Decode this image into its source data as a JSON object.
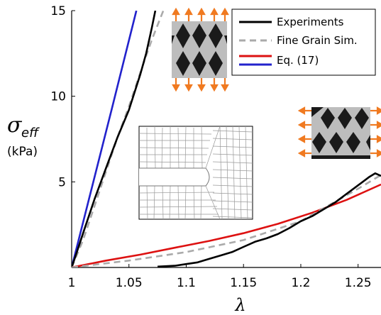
{
  "chart_data": {
    "type": "line",
    "xlabel": "λ",
    "ylabel": {
      "symbol": "σ",
      "subscript": "eff",
      "unit": "(kPa)"
    },
    "xlim": [
      1.0,
      1.27
    ],
    "ylim": [
      0,
      15
    ],
    "xticks": [
      {
        "value": 1.0,
        "label": "1"
      },
      {
        "value": 1.05,
        "label": "1.05"
      },
      {
        "value": 1.1,
        "label": "1.1"
      },
      {
        "value": 1.15,
        "label": "1.15"
      },
      {
        "value": 1.2,
        "label": "1.2"
      },
      {
        "value": 1.25,
        "label": "1.25"
      }
    ],
    "yticks": [
      {
        "value": 5,
        "label": "5"
      },
      {
        "value": 10,
        "label": "10"
      },
      {
        "value": 15,
        "label": "15"
      }
    ],
    "grid": false,
    "legend": {
      "placement": "top-right",
      "entries": [
        {
          "label": "Experiments",
          "color": "#000000",
          "dash": "solid"
        },
        {
          "label": "Fine Grain Sim.",
          "color": "#aaaaaa",
          "dash": "dashed"
        },
        {
          "label": "Eq. (17)",
          "color": "#dd1111",
          "dash": "solid"
        }
      ]
    },
    "series": [
      {
        "name": "Eq. (17)",
        "group": "vertical",
        "color": "#2222cc",
        "dash": "solid",
        "x": [
          1.0,
          1.035,
          1.0565
        ],
        "y": [
          0,
          9.25,
          15
        ]
      },
      {
        "name": "Fine Grain Sim.",
        "group": "vertical",
        "color": "#aaaaaa",
        "dash": "dashed",
        "x": [
          1.0,
          1.01,
          1.02,
          1.03,
          1.04,
          1.05,
          1.06,
          1.07,
          1.08
        ],
        "y": [
          0,
          1.6,
          3.6,
          5.6,
          7.6,
          9.4,
          11.4,
          13.3,
          15
        ]
      },
      {
        "name": "Experiments",
        "group": "vertical",
        "color": "#000000",
        "dash": "solid",
        "x": [
          1.0,
          1.005,
          1.01,
          1.02,
          1.03,
          1.04,
          1.05,
          1.06,
          1.065,
          1.07,
          1.073
        ],
        "y": [
          0,
          1.0,
          2.0,
          4.0,
          5.8,
          7.6,
          9.2,
          11.3,
          12.5,
          14.0,
          15
        ]
      },
      {
        "name": "Eq. (17)",
        "group": "horizontal",
        "color": "#dd1111",
        "dash": "solid",
        "x": [
          1.0,
          1.03,
          1.06,
          1.09,
          1.12,
          1.15,
          1.18,
          1.21,
          1.24,
          1.27
        ],
        "y": [
          0,
          0.4,
          0.75,
          1.15,
          1.55,
          2.0,
          2.55,
          3.2,
          3.95,
          4.85
        ]
      },
      {
        "name": "Fine Grain Sim.",
        "group": "horizontal",
        "color": "#aaaaaa",
        "dash": "dashed",
        "x": [
          1.0,
          1.05,
          1.1,
          1.15,
          1.2,
          1.25,
          1.27
        ],
        "y": [
          0,
          0.4,
          0.9,
          1.6,
          2.7,
          4.6,
          5.4
        ]
      },
      {
        "name": "Experiments",
        "group": "horizontal",
        "color": "#000000",
        "dash": "solid",
        "x": [
          1.075,
          1.09,
          1.1,
          1.11,
          1.12,
          1.13,
          1.14,
          1.15,
          1.16,
          1.17,
          1.18,
          1.19,
          1.2,
          1.21,
          1.22,
          1.23,
          1.24,
          1.25,
          1.26,
          1.265,
          1.27
        ],
        "y": [
          0.05,
          0.1,
          0.2,
          0.3,
          0.5,
          0.7,
          0.9,
          1.2,
          1.5,
          1.7,
          1.95,
          2.3,
          2.7,
          3.0,
          3.4,
          3.8,
          4.3,
          4.8,
          5.3,
          5.5,
          5.35
        ]
      }
    ]
  },
  "insets": [
    {
      "name": "vertical-stretch-specimen",
      "arrows": "vertical"
    },
    {
      "name": "horizontal-stretch-specimen",
      "arrows": "horizontal"
    },
    {
      "name": "mesh-cell",
      "arrows": "none"
    }
  ],
  "colors": {
    "arrow": "#f07a21",
    "specimen_fill": "#1a1a1a",
    "specimen_web": "#bdbdbd",
    "mesh_line": "#999999"
  }
}
